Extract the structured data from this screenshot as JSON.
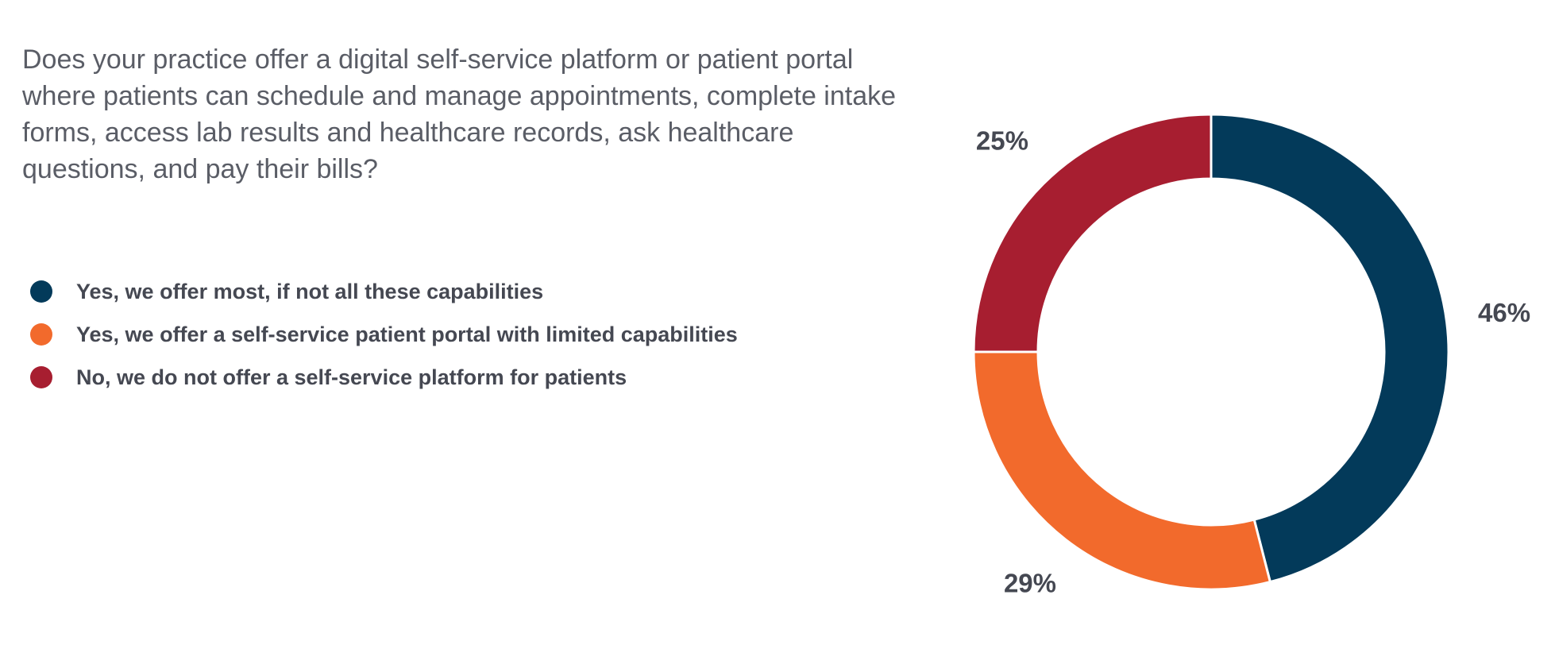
{
  "question": "Does your practice offer a digital self-service platform or patient portal where patients can schedule and manage appointments, complete intake forms, access lab results and healthcare records, ask healthcare questions, and pay their bills?",
  "chart_data": {
    "type": "pie",
    "donut": true,
    "title": "",
    "legend_position": "left",
    "slices": [
      {
        "label": "Yes, we offer most, if not all these capabilities",
        "value": 46,
        "value_label": "46%",
        "color": "#033a5a"
      },
      {
        "label": "Yes, we offer a self-service patient portal with limited capabilities",
        "value": 29,
        "value_label": "29%",
        "color": "#f26a2c"
      },
      {
        "label": "No, we do not offer a self-service platform for patients",
        "value": 25,
        "value_label": "25%",
        "color": "#a71e30"
      }
    ]
  }
}
